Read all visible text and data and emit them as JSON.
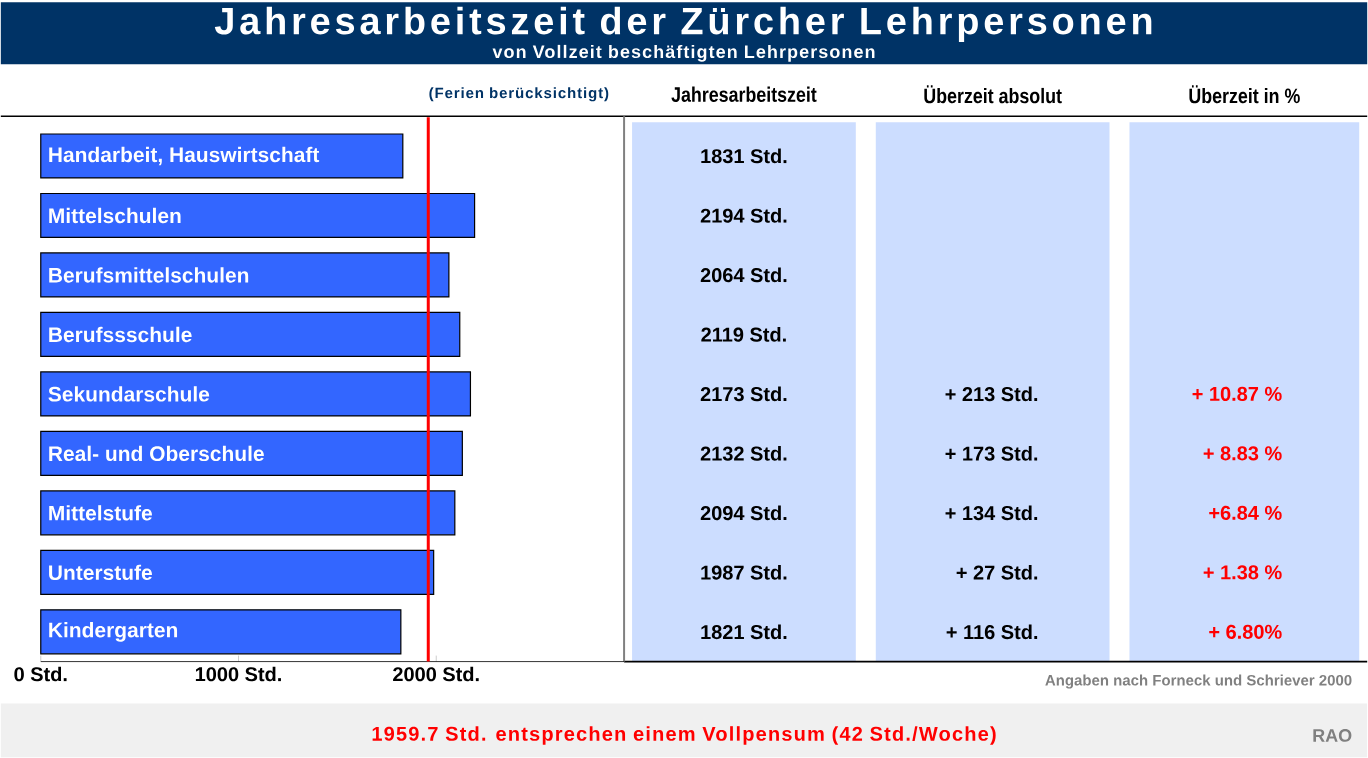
{
  "chart_data": {
    "type": "bar",
    "orientation": "horizontal",
    "title": "Jahresarbeitszeit der Zürcher Lehrpersonen",
    "subtitle": "von Vollzeit beschäftigten Lehrpersonen",
    "categories": [
      "Handarbeit, Hauswirtschaft",
      "Mittelschulen",
      "Berufsmittelschulen",
      "Berufssschule",
      "Sekundarschule",
      "Real- und Oberschule",
      "Mittelstufe",
      "Unterstufe",
      "Kindergarten"
    ],
    "values": [
      1831,
      2194,
      2064,
      2119,
      2173,
      2132,
      2094,
      1987,
      1821
    ],
    "value_labels": [
      "1831 Std.",
      "2194 Std.",
      "2064 Std.",
      "2119 Std.",
      "2173 Std.",
      "2132 Std.",
      "2094 Std.",
      "1987 Std.",
      "1821 Std."
    ],
    "color": "#3366ff",
    "xlim": [
      0,
      2950
    ],
    "xticks": [
      {
        "value": 0,
        "label": "0 Std."
      },
      {
        "value": 1000,
        "label": "1000 Std."
      },
      {
        "value": 2000,
        "label": "2000 Std."
      }
    ],
    "grid": false,
    "ref_lines": [
      {
        "axis": "x",
        "value": 1959.7,
        "label": "1959.7 Std. entsprechen einem Vollpensum (42 Std./Woche)",
        "color": "#ff0000"
      }
    ],
    "annotations": [
      "(Ferien berücksichtigt)",
      "Jahresarbeitszeit",
      "Überzeit absolut",
      "Überzeit in %",
      "+ 213 Std.",
      "+ 173 Std.",
      "+ 134 Std.",
      "+ 27 Std.",
      "+ 116 Std.",
      "+ 10.87 %",
      "+ 8.83 %",
      "+6.84 %",
      "+ 1.38 %",
      "+ 6.80%",
      "Angaben nach Forneck und Schriever 2000",
      "RAO"
    ]
  }
}
